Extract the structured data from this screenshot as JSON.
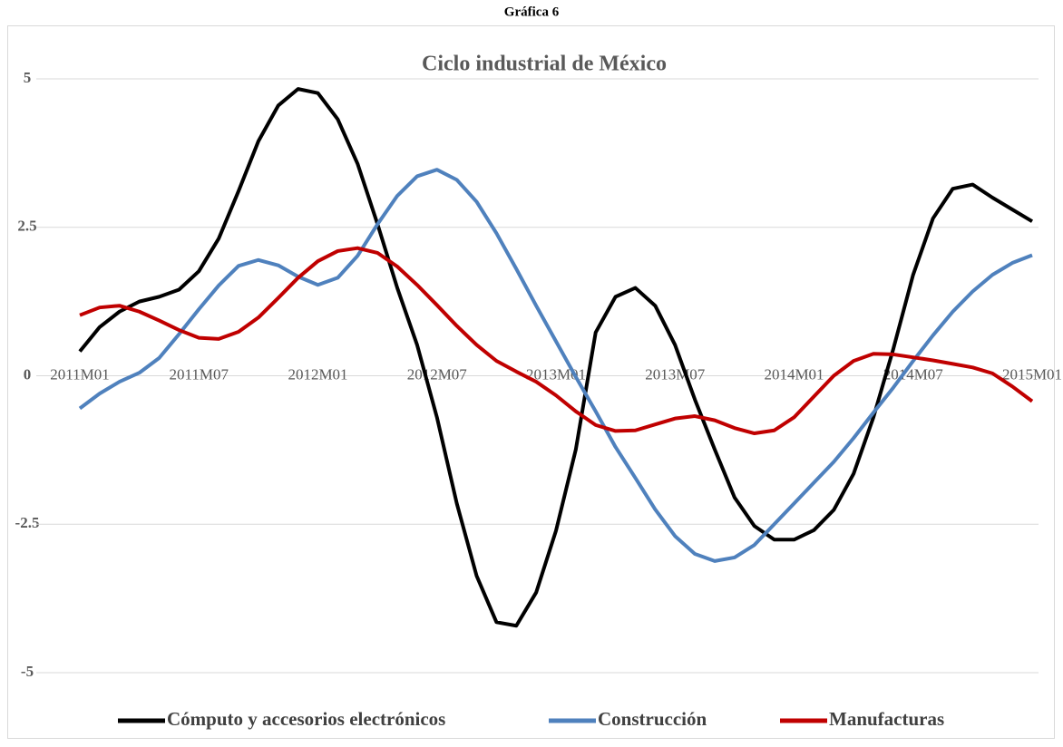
{
  "header": {
    "title": "Gráfica 6"
  },
  "chart_data": {
    "type": "line",
    "title": "Ciclo industrial de México",
    "categories": [
      "2011M01",
      null,
      null,
      null,
      null,
      null,
      "2011M07",
      null,
      null,
      null,
      null,
      null,
      "2012M01",
      null,
      null,
      null,
      null,
      null,
      "2012M07",
      null,
      null,
      null,
      null,
      null,
      "2013M01",
      null,
      null,
      null,
      null,
      null,
      "2013M07",
      null,
      null,
      null,
      null,
      null,
      "2014M01",
      null,
      null,
      null,
      null,
      null,
      "2014M07",
      null,
      null,
      null,
      null,
      null,
      "2015M01"
    ],
    "series": [
      {
        "name": "Cómputo y accesorios electrónicos",
        "color": "#000000",
        "values": [
          0.41,
          0.82,
          1.08,
          1.25,
          1.33,
          1.45,
          1.76,
          2.31,
          3.11,
          3.95,
          4.55,
          4.83,
          4.76,
          4.32,
          3.57,
          2.56,
          1.48,
          0.52,
          -0.7,
          -2.15,
          -3.37,
          -4.15,
          -4.21,
          -3.65,
          -2.61,
          -1.24,
          0.73,
          1.33,
          1.48,
          1.18,
          0.52,
          -0.4,
          -1.24,
          -2.05,
          -2.53,
          -2.76,
          -2.76,
          -2.6,
          -2.26,
          -1.65,
          -0.7,
          0.45,
          1.7,
          2.65,
          3.15,
          3.22,
          3.0,
          2.8,
          2.6
        ]
      },
      {
        "name": "Construcción",
        "color": "#4f81bd",
        "values": [
          -0.55,
          -0.3,
          -0.1,
          0.05,
          0.3,
          0.7,
          1.12,
          1.52,
          1.85,
          1.95,
          1.86,
          1.67,
          1.53,
          1.65,
          2.02,
          2.55,
          3.03,
          3.36,
          3.47,
          3.3,
          2.93,
          2.4,
          1.8,
          1.18,
          0.58,
          -0.02,
          -0.6,
          -1.2,
          -1.72,
          -2.25,
          -2.7,
          -3.0,
          -3.12,
          -3.06,
          -2.85,
          -2.5,
          -2.15,
          -1.8,
          -1.45,
          -1.05,
          -0.62,
          -0.2,
          0.25,
          0.68,
          1.08,
          1.42,
          1.7,
          1.9,
          2.03
        ]
      },
      {
        "name": "Manufacturas",
        "color": "#c00000",
        "values": [
          1.02,
          1.15,
          1.18,
          1.08,
          0.93,
          0.77,
          0.64,
          0.62,
          0.74,
          0.98,
          1.31,
          1.65,
          1.93,
          2.1,
          2.15,
          2.07,
          1.84,
          1.53,
          1.19,
          0.84,
          0.52,
          0.25,
          0.07,
          -0.1,
          -0.33,
          -0.6,
          -0.83,
          -0.93,
          -0.92,
          -0.82,
          -0.72,
          -0.68,
          -0.75,
          -0.88,
          -0.97,
          -0.92,
          -0.7,
          -0.35,
          0.0,
          0.25,
          0.37,
          0.36,
          0.31,
          0.26,
          0.2,
          0.14,
          0.04,
          -0.18,
          -0.43
        ]
      }
    ],
    "ylim": [
      -5,
      5
    ],
    "yticks": [
      5,
      2.5,
      0,
      -2.5,
      -5
    ],
    "grid": true,
    "legend": "bottom"
  }
}
